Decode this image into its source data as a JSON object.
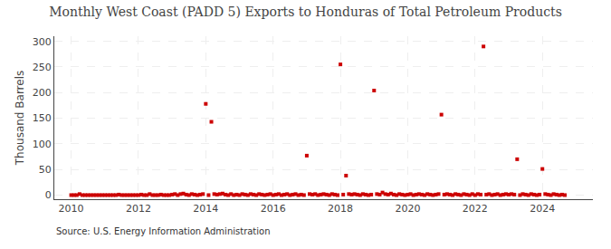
{
  "chart_data": {
    "type": "scatter",
    "title": "Monthly West Coast (PADD 5) Exports to Honduras of Total Petroleum Products",
    "ylabel": "Thousand Barrels",
    "annotations": [
      "Source: U.S. Energy Information Administration"
    ],
    "color": "#cc0000",
    "marker": "square",
    "grid": true,
    "xlim": [
      2009.5,
      2025.5
    ],
    "ylim": [
      -8,
      310
    ],
    "xticks": [
      2010,
      2012,
      2014,
      2016,
      2018,
      2020,
      2022,
      2024
    ],
    "yticks": [
      0,
      50,
      100,
      150,
      200,
      250,
      300
    ],
    "x": [
      2010.0,
      2010.0833333333333,
      2010.1666666666667,
      2010.25,
      2010.3333333333333,
      2010.4166666666667,
      2010.5,
      2010.5833333333333,
      2010.6666666666667,
      2010.75,
      2010.8333333333333,
      2010.9166666666667,
      2011.0,
      2011.0833333333333,
      2011.1666666666667,
      2011.25,
      2011.3333333333333,
      2011.4166666666667,
      2011.5,
      2011.5833333333333,
      2011.6666666666667,
      2011.75,
      2011.8333333333333,
      2011.9166666666667,
      2012.0,
      2012.0833333333333,
      2012.1666666666667,
      2012.25,
      2012.3333333333333,
      2012.4166666666667,
      2012.5,
      2012.5833333333333,
      2012.6666666666667,
      2012.75,
      2012.8333333333333,
      2012.9166666666667,
      2013.0,
      2013.0833333333333,
      2013.1666666666667,
      2013.25,
      2013.3333333333333,
      2013.4166666666667,
      2013.5,
      2013.5833333333333,
      2013.6666666666667,
      2013.75,
      2013.8333333333333,
      2013.9166666666667,
      2014.0,
      2014.0833333333333,
      2014.1666666666667,
      2014.25,
      2014.3333333333333,
      2014.4166666666667,
      2014.5,
      2014.5833333333333,
      2014.6666666666667,
      2014.75,
      2014.8333333333333,
      2014.9166666666667,
      2015.0,
      2015.0833333333333,
      2015.1666666666667,
      2015.25,
      2015.3333333333333,
      2015.4166666666667,
      2015.5,
      2015.5833333333333,
      2015.6666666666667,
      2015.75,
      2015.8333333333333,
      2015.9166666666667,
      2016.0,
      2016.0833333333333,
      2016.1666666666667,
      2016.25,
      2016.3333333333333,
      2016.4166666666667,
      2016.5,
      2016.5833333333333,
      2016.6666666666667,
      2016.75,
      2016.8333333333333,
      2016.9166666666667,
      2017.0,
      2017.0833333333333,
      2017.1666666666667,
      2017.25,
      2017.3333333333333,
      2017.4166666666667,
      2017.5,
      2017.5833333333333,
      2017.6666666666667,
      2017.75,
      2017.8333333333333,
      2017.9166666666667,
      2018.0,
      2018.0833333333333,
      2018.1666666666667,
      2018.25,
      2018.3333333333333,
      2018.4166666666667,
      2018.5,
      2018.5833333333333,
      2018.6666666666667,
      2018.75,
      2018.8333333333333,
      2018.9166666666667,
      2019.0,
      2019.0833333333333,
      2019.1666666666667,
      2019.25,
      2019.3333333333333,
      2019.4166666666667,
      2019.5,
      2019.5833333333333,
      2019.6666666666667,
      2019.75,
      2019.8333333333333,
      2019.9166666666667,
      2020.0,
      2020.0833333333333,
      2020.1666666666667,
      2020.25,
      2020.3333333333333,
      2020.4166666666667,
      2020.5,
      2020.5833333333333,
      2020.6666666666667,
      2020.75,
      2020.8333333333333,
      2020.9166666666667,
      2021.0,
      2021.0833333333333,
      2021.1666666666667,
      2021.25,
      2021.3333333333333,
      2021.4166666666667,
      2021.5,
      2021.5833333333333,
      2021.6666666666667,
      2021.75,
      2021.8333333333333,
      2021.9166666666667,
      2022.0,
      2022.0833333333333,
      2022.1666666666667,
      2022.25,
      2022.3333333333333,
      2022.4166666666667,
      2022.5,
      2022.5833333333333,
      2022.6666666666667,
      2022.75,
      2022.8333333333333,
      2022.9166666666667,
      2023.0,
      2023.0833333333333,
      2023.1666666666667,
      2023.25,
      2023.3333333333333,
      2023.4166666666667,
      2023.5,
      2023.5833333333333,
      2023.6666666666667,
      2023.75,
      2023.8333333333333,
      2023.9166666666667,
      2024.0,
      2024.0833333333333,
      2024.1666666666667,
      2024.25,
      2024.3333333333333,
      2024.4166666666667,
      2024.5,
      2024.5833333333333,
      2024.6666666666667
    ],
    "values": [
      0,
      0,
      0,
      2,
      0,
      0,
      0,
      0,
      0,
      0,
      0,
      0,
      0,
      0,
      0,
      0,
      0,
      1,
      0,
      0,
      0,
      0,
      0,
      0,
      0,
      1,
      0,
      0,
      2,
      0,
      0,
      0,
      1,
      0,
      0,
      0,
      1,
      2,
      0,
      2,
      3,
      1,
      0,
      2,
      1,
      0,
      1,
      2,
      178,
      0,
      143,
      2,
      1,
      2,
      3,
      1,
      0,
      2,
      0,
      1,
      0,
      2,
      1,
      0,
      2,
      1,
      0,
      2,
      1,
      0,
      1,
      2,
      0,
      1,
      2,
      0,
      1,
      2,
      0,
      1,
      2,
      0,
      1,
      0,
      77,
      2,
      1,
      2,
      0,
      1,
      2,
      1,
      0,
      2,
      1,
      0,
      255,
      1,
      38,
      2,
      1,
      2,
      1,
      0,
      2,
      1,
      0,
      1,
      204,
      2,
      1,
      5,
      2,
      1,
      3,
      1,
      0,
      2,
      1,
      0,
      1,
      2,
      0,
      1,
      2,
      1,
      0,
      2,
      1,
      0,
      1,
      2,
      157,
      1,
      2,
      1,
      0,
      2,
      1,
      0,
      2,
      1,
      0,
      2,
      0,
      2,
      1,
      290,
      1,
      2,
      0,
      1,
      2,
      0,
      1,
      2,
      1,
      2,
      1,
      70,
      0,
      2,
      1,
      0,
      2,
      1,
      0,
      1,
      51,
      2,
      1,
      0,
      2,
      1,
      0,
      1,
      0
    ]
  }
}
